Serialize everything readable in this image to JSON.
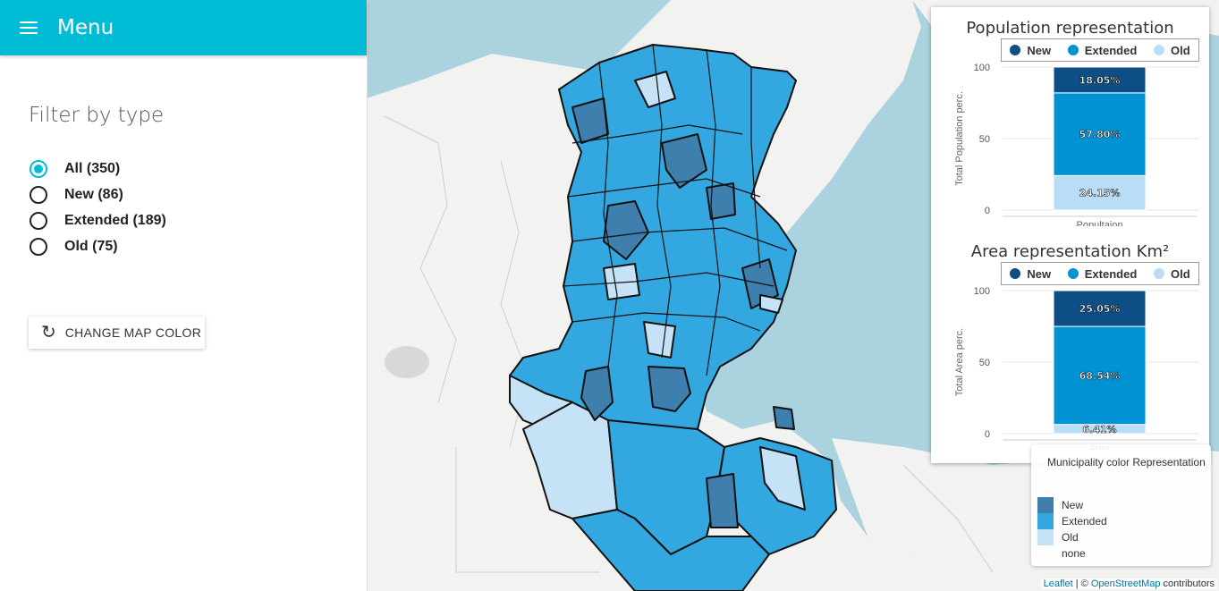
{
  "sidebar": {
    "menu_title": "Menu",
    "filter_title": "Filter by type",
    "options": [
      {
        "label": "All (350)",
        "checked": true
      },
      {
        "label": "New (86)",
        "checked": false
      },
      {
        "label": "Extended (189)",
        "checked": false
      },
      {
        "label": "Old (75)",
        "checked": false
      }
    ],
    "change_color_label": "CHANGE MAP COLOR"
  },
  "colors": {
    "accent": "#00bcd4",
    "new": "#0d4f85",
    "extended": "#0192d3",
    "old": "#b9ddf6",
    "map_new": "#3f7fae",
    "map_extended": "#33a8e0",
    "map_old": "#c6e2f7"
  },
  "chart_data": [
    {
      "type": "bar",
      "title": "Population representation",
      "ylabel": "Total Population perc.",
      "categories": [
        "Popultaion"
      ],
      "ylim": [
        0,
        100
      ],
      "yticks": [
        "100",
        "50",
        "0"
      ],
      "series": [
        {
          "name": "New",
          "values": [
            18.05
          ],
          "label": "18.05%"
        },
        {
          "name": "Extended",
          "values": [
            57.8
          ],
          "label": "57.80%"
        },
        {
          "name": "Old",
          "values": [
            24.15
          ],
          "label": "24.15%"
        }
      ],
      "legend": "top"
    },
    {
      "type": "bar",
      "title": "Area representation Km²",
      "ylabel": "Total Area perc.",
      "categories": [
        "Area"
      ],
      "ylim": [
        0,
        100
      ],
      "yticks": [
        "100",
        "50",
        "0"
      ],
      "series": [
        {
          "name": "New",
          "values": [
            25.05
          ],
          "label": "25.05%"
        },
        {
          "name": "Extended",
          "values": [
            68.54
          ],
          "label": "68.54%"
        },
        {
          "name": "Old",
          "values": [
            6.41
          ],
          "label": "6.41%"
        }
      ],
      "legend": "top"
    }
  ],
  "map_legend": {
    "title": "Municipality color Representation",
    "items": [
      "New",
      "Extended",
      "Old",
      "none"
    ]
  },
  "attribution": {
    "leaflet": "Leaflet",
    "sep": " | © ",
    "osm": "OpenStreetMap",
    "suffix": " contributors"
  }
}
